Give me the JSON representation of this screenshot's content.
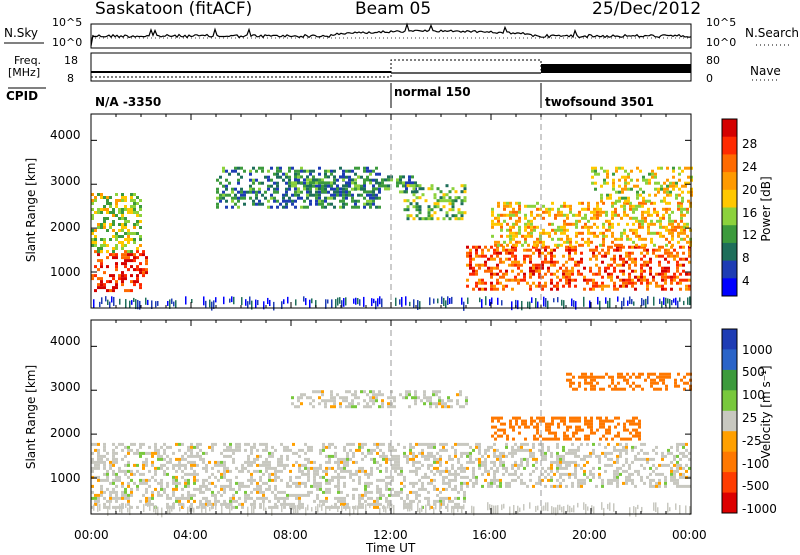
{
  "header": {
    "station": "Saskatoon (fitACF)",
    "beam": "Beam 05",
    "date": "25/Dec/2012"
  },
  "top_panel": {
    "left_label": "N.Sky",
    "left_ticks": [
      "10^5",
      "10^0"
    ],
    "right_label": "N.Search",
    "right_ticks": [
      "10^5",
      "10^0"
    ]
  },
  "freq_panel": {
    "left_label_1": "Freq.",
    "left_label_2": "[MHz]",
    "left_ticks": [
      "18",
      "8"
    ],
    "right_label": "Nave",
    "right_ticks": [
      "80",
      "0"
    ]
  },
  "cpid_panel": {
    "label": "CPID",
    "segments": [
      "N/A -3350",
      "normal 150",
      "twofsound 3501"
    ]
  },
  "power_panel": {
    "ylabel": "Slant Range [km]",
    "yticks": [
      "4000",
      "3000",
      "2000",
      "1000"
    ],
    "colorbar_label": "Power [dB]",
    "colorbar_ticks": [
      "28",
      "24",
      "20",
      "16",
      "12",
      "8",
      "4"
    ],
    "colors": [
      "#d40000",
      "#ff2a00",
      "#ff6a00",
      "#ff9a00",
      "#ffc800",
      "#8cd23c",
      "#3c9a3c",
      "#1e6e5a",
      "#1e3cb4",
      "#0000ff"
    ]
  },
  "velocity_panel": {
    "ylabel": "Slant Range [km]",
    "yticks": [
      "4000",
      "3000",
      "2000",
      "1000"
    ],
    "colorbar_label": "Velocity [m s⁻¹]",
    "colorbar_ticks": [
      "1000",
      "500",
      "100",
      "25",
      "-25",
      "-100",
      "-500",
      "-1000"
    ],
    "colors": [
      "#1e3cb4",
      "#2a64c8",
      "#3c9a3c",
      "#78c83c",
      "#c8c8c0",
      "#ffa000",
      "#ff7800",
      "#ff3c00",
      "#dc0000"
    ]
  },
  "xaxis": {
    "ticks": [
      "00:00",
      "04:00",
      "08:00",
      "12:00",
      "16:00",
      "20:00",
      "00:00"
    ],
    "label": "Time UT"
  },
  "chart_data": [
    {
      "type": "heatmap",
      "title": "Saskatoon (fitACF) Beam 05 25/Dec/2012",
      "xlabel": "Time UT",
      "ylabel": "Slant Range [km]",
      "ylim": [
        180,
        4600
      ],
      "x_range_hours": [
        0,
        24
      ],
      "zlabel": "Power [dB]",
      "zlim": [
        0,
        30
      ],
      "regions": [
        {
          "time_h": [
            0.0,
            2.2
          ],
          "range_km": [
            600,
            1500
          ],
          "value_db": 26
        },
        {
          "time_h": [
            0.0,
            2.0
          ],
          "range_km": [
            1500,
            2800
          ],
          "value_db": 14
        },
        {
          "time_h": [
            5.0,
            11.5
          ],
          "range_km": [
            2500,
            3400
          ],
          "value_db": 8
        },
        {
          "time_h": [
            8.0,
            13.0
          ],
          "range_km": [
            2800,
            3200
          ],
          "value_db": 10
        },
        {
          "time_h": [
            12.5,
            15.0
          ],
          "range_km": [
            2200,
            3000
          ],
          "value_db": 12
        },
        {
          "time_h": [
            15.0,
            24.0
          ],
          "range_km": [
            600,
            1600
          ],
          "value_db": 24
        },
        {
          "time_h": [
            16.0,
            24.0
          ],
          "range_km": [
            1600,
            2600
          ],
          "value_db": 18
        },
        {
          "time_h": [
            20.0,
            24.0
          ],
          "range_km": [
            2600,
            3400
          ],
          "value_db": 16
        }
      ]
    },
    {
      "type": "heatmap",
      "xlabel": "Time UT",
      "ylabel": "Slant Range [km]",
      "ylim": [
        180,
        4600
      ],
      "x_range_hours": [
        0,
        24
      ],
      "zlabel": "Velocity [m s⁻¹]",
      "zlim": [
        -1000,
        1000
      ],
      "regions": [
        {
          "time_h": [
            0.0,
            15.0
          ],
          "range_km": [
            300,
            1800
          ],
          "value_ms": 0
        },
        {
          "time_h": [
            8.0,
            15.0
          ],
          "range_km": [
            2600,
            3000
          ],
          "value_ms": 0
        },
        {
          "time_h": [
            16.0,
            22.0
          ],
          "range_km": [
            1900,
            2400
          ],
          "value_ms": -300
        },
        {
          "time_h": [
            19.0,
            24.0
          ],
          "range_km": [
            3000,
            3400
          ],
          "value_ms": -200
        },
        {
          "time_h": [
            15.0,
            24.0
          ],
          "range_km": [
            800,
            1800
          ],
          "value_ms": 0
        }
      ]
    }
  ]
}
